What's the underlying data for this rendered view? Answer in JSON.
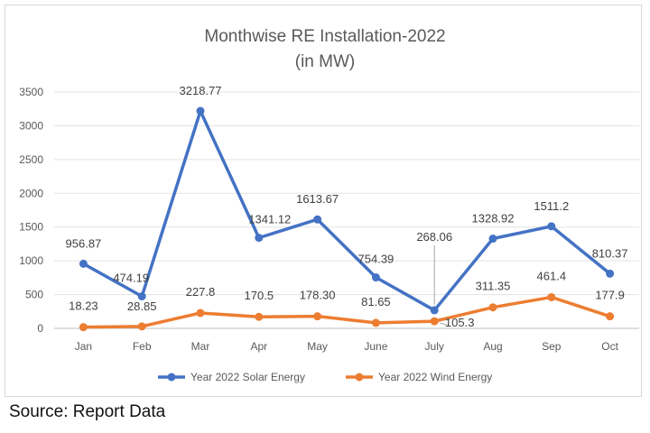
{
  "chart_data": {
    "type": "line",
    "title_line1": "Monthwise RE Installation-2022",
    "title_line2": "(in MW)",
    "categories": [
      "Jan",
      "Feb",
      "Mar",
      "Apr",
      "May",
      "June",
      "July",
      "Aug",
      "Sep",
      "Oct"
    ],
    "y_ticks": [
      "0",
      "500",
      "1000",
      "1500",
      "2000",
      "2500",
      "3000",
      "3500"
    ],
    "ylim": [
      0,
      3500
    ],
    "grid": "horizontal",
    "legend_position": "bottom",
    "series": [
      {
        "name": "Year 2022 Solar Energy",
        "color": "#4472c4",
        "values": [
          956.87,
          474.19,
          3218.77,
          1341.12,
          1613.67,
          754.39,
          268.06,
          1328.92,
          1511.2,
          810.37
        ],
        "labels": [
          "956.87",
          "474.19",
          "3218.77",
          "1341.12",
          "1613.67",
          "754.39",
          "268.06",
          "1328.92",
          "1511.2",
          "810.37"
        ]
      },
      {
        "name": "Year 2022 Wind Energy",
        "color": "#ed7d31",
        "values": [
          18.23,
          28.85,
          227.8,
          170.5,
          178.3,
          81.65,
          105.3,
          311.35,
          461.4,
          177.9
        ],
        "labels": [
          "18.23",
          "28.85",
          "227.8",
          "170.5",
          "178.30",
          "81.65",
          "105.3",
          "311.35",
          "461.4",
          "177.9"
        ]
      }
    ]
  },
  "source": "Source: Report Data"
}
